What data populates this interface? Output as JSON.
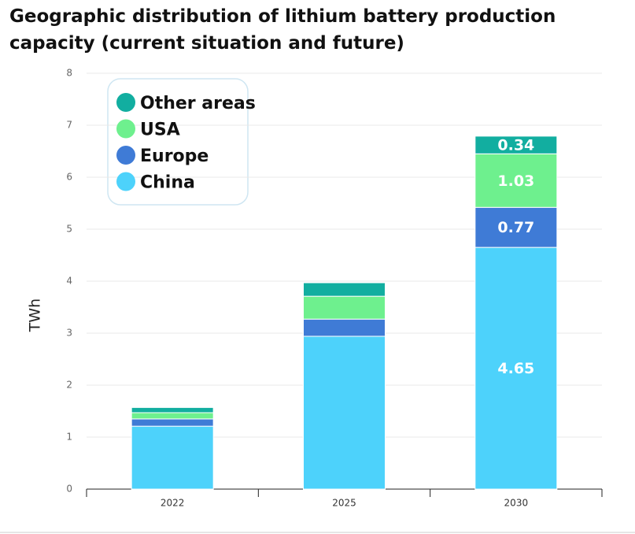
{
  "chart_data": {
    "type": "stacked-bar",
    "title": "Geographic distribution of lithium battery production capacity (current situation and future)",
    "y_label": "TWh",
    "categories": [
      "2022",
      "2025",
      "2030"
    ],
    "series": [
      {
        "name": "China",
        "color": "#4dd2fb",
        "values": [
          1.21,
          2.94,
          4.65
        ],
        "value_labels": [
          null,
          null,
          "4.65"
        ]
      },
      {
        "name": "Europe",
        "color": "#3f7bd6",
        "values": [
          0.14,
          0.33,
          0.77
        ],
        "value_labels": [
          null,
          null,
          "0.77"
        ]
      },
      {
        "name": "USA",
        "color": "#6ef08e",
        "values": [
          0.12,
          0.44,
          1.03
        ],
        "value_labels": [
          null,
          null,
          "1.03"
        ]
      },
      {
        "name": "Other areas",
        "color": "#12aea0",
        "values": [
          0.1,
          0.26,
          0.34
        ],
        "value_labels": [
          null,
          null,
          "0.34"
        ]
      }
    ],
    "ylim": [
      0,
      8
    ],
    "yticks": [
      0,
      1,
      2,
      3,
      4,
      5,
      6,
      7,
      8
    ],
    "grid": true,
    "legend": "upper left"
  }
}
